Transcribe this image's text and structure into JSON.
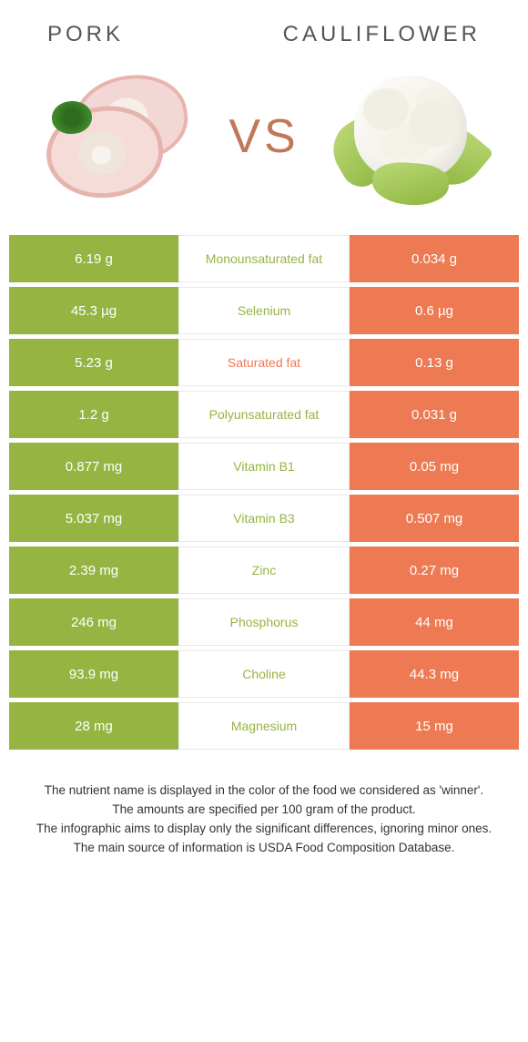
{
  "header": {
    "left_title": "Pork",
    "right_title": "Cauliflower",
    "vs_label": "VS"
  },
  "colors": {
    "pork_bar": "#96b441",
    "cauli_bar": "#ed7a52",
    "pork_winner_text": "#96b441",
    "cauli_winner_text": "#ed7a52"
  },
  "rows": [
    {
      "left": "6.19 g",
      "label": "Monounsaturated fat",
      "right": "0.034 g",
      "winner": "pork"
    },
    {
      "left": "45.3 µg",
      "label": "Selenium",
      "right": "0.6 µg",
      "winner": "pork"
    },
    {
      "left": "5.23 g",
      "label": "Saturated fat",
      "right": "0.13 g",
      "winner": "cauli"
    },
    {
      "left": "1.2 g",
      "label": "Polyunsaturated fat",
      "right": "0.031 g",
      "winner": "pork"
    },
    {
      "left": "0.877 mg",
      "label": "Vitamin B1",
      "right": "0.05 mg",
      "winner": "pork"
    },
    {
      "left": "5.037 mg",
      "label": "Vitamin B3",
      "right": "0.507 mg",
      "winner": "pork"
    },
    {
      "left": "2.39 mg",
      "label": "Zinc",
      "right": "0.27 mg",
      "winner": "pork"
    },
    {
      "left": "246 mg",
      "label": "Phosphorus",
      "right": "44 mg",
      "winner": "pork"
    },
    {
      "left": "93.9 mg",
      "label": "Choline",
      "right": "44.3 mg",
      "winner": "pork"
    },
    {
      "left": "28 mg",
      "label": "Magnesium",
      "right": "15 mg",
      "winner": "pork"
    }
  ],
  "footnotes": [
    "The nutrient name is displayed in the color of the food we considered as 'winner'.",
    "The amounts are specified per 100 gram of the product.",
    "The infographic aims to display only the significant differences, ignoring minor ones.",
    "The main source of information is USDA Food Composition Database."
  ]
}
